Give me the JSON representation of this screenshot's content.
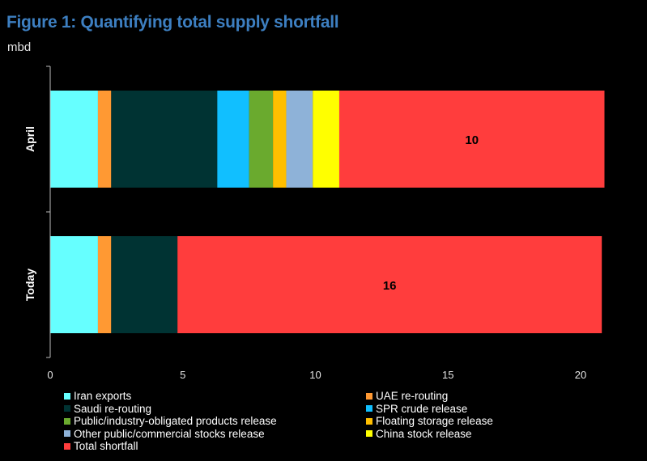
{
  "title": "Figure 1: Quantifying total supply shortfall",
  "unit_label": "mbd",
  "chart_data": {
    "type": "bar",
    "orientation": "horizontal",
    "stacked": true,
    "title": "Figure 1: Quantifying total supply shortfall",
    "ylabel": "mbd",
    "xlim": [
      0,
      21
    ],
    "x_ticks": [
      0,
      5,
      10,
      15,
      20
    ],
    "categories": [
      "April",
      "Today"
    ],
    "series": [
      {
        "name": "Iran exports",
        "color": "#66ffff",
        "values": [
          1.8,
          1.8
        ]
      },
      {
        "name": "UAE re-routing",
        "color": "#ff9933",
        "values": [
          0.5,
          0.5
        ]
      },
      {
        "name": "Saudi re-routing",
        "color": "#003333",
        "values": [
          4.0,
          2.5
        ]
      },
      {
        "name": "SPR crude release",
        "color": "#11bfff",
        "values": [
          1.2,
          0
        ]
      },
      {
        "name": "Public/industry-obligated products release",
        "color": "#6aaa2e",
        "values": [
          0.9,
          0
        ]
      },
      {
        "name": "Floating storage release",
        "color": "#ffbf00",
        "values": [
          0.5,
          0
        ]
      },
      {
        "name": "Other public/commercial stocks release",
        "color": "#8eb2d8",
        "values": [
          1.0,
          0
        ]
      },
      {
        "name": "China stock release",
        "color": "#ffff00",
        "values": [
          1.0,
          0
        ]
      },
      {
        "name": "Total shortfall",
        "color": "#ff3d3d",
        "values": [
          10,
          16
        ],
        "data_labels": [
          "10",
          "16"
        ]
      }
    ]
  }
}
